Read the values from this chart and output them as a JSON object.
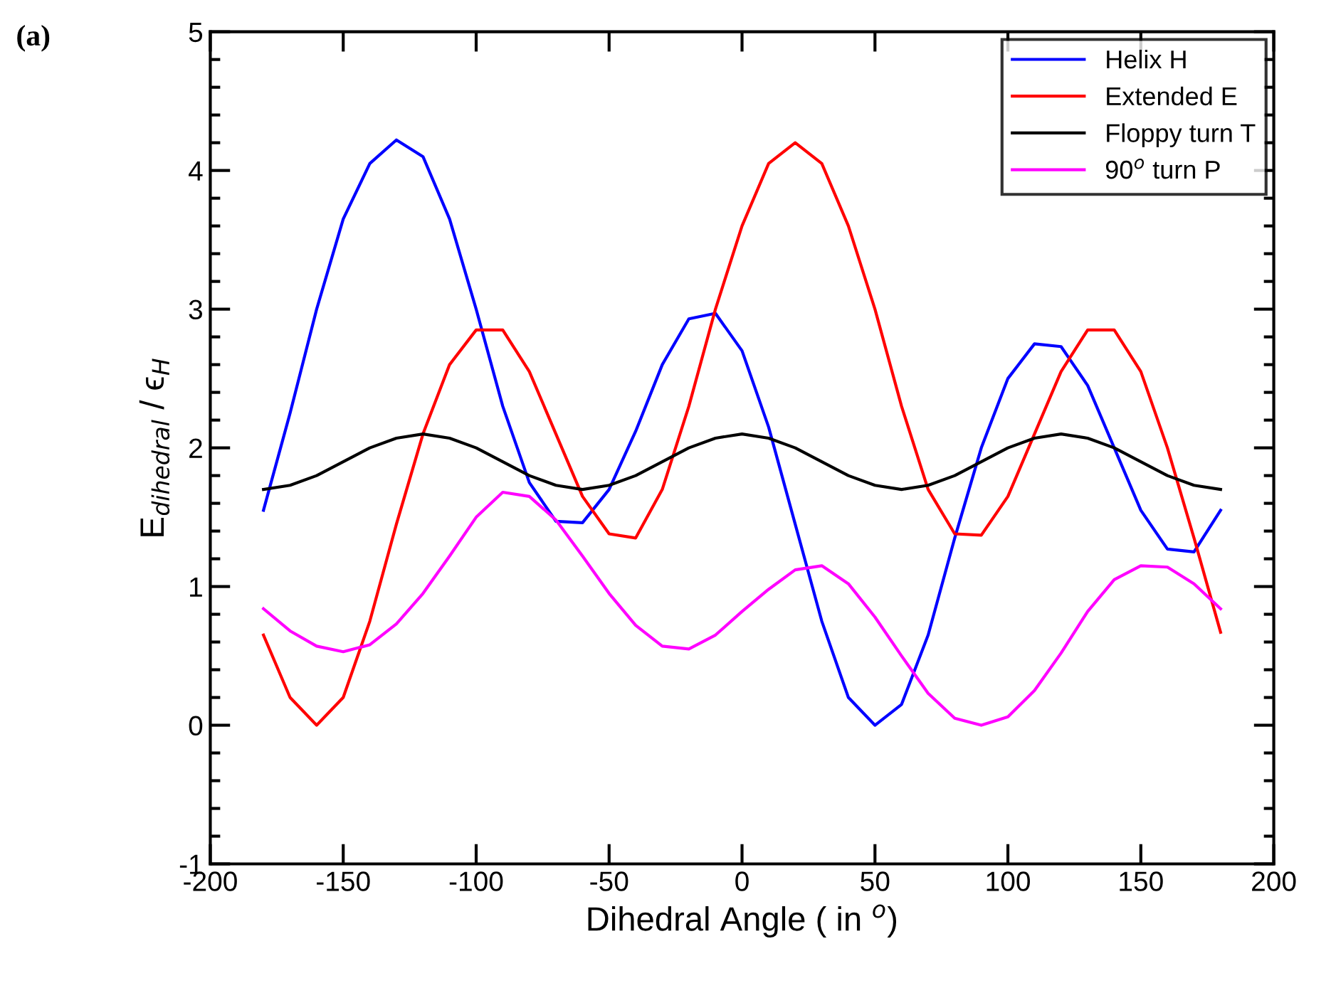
{
  "chart_data": {
    "type": "line",
    "xlabel": "Dihedral Angle ( in $^{o}$)",
    "ylabel": "E$_{dihedral}$ / ϵ$_{H}$",
    "annotations": [
      "(a)"
    ],
    "x": [
      -180,
      -170,
      -160,
      -150,
      -140,
      -130,
      -120,
      -110,
      -100,
      -90,
      -80,
      -70,
      -60,
      -50,
      -40,
      -30,
      -20,
      -10,
      0,
      10,
      20,
      30,
      40,
      50,
      60,
      70,
      80,
      90,
      100,
      110,
      120,
      130,
      140,
      150,
      160,
      170,
      180
    ],
    "series": [
      {
        "name": "Helix H",
        "color": "#0000ff",
        "values": [
          1.55,
          2.25,
          3.0,
          3.65,
          4.05,
          4.22,
          4.1,
          3.65,
          3.0,
          2.3,
          1.75,
          1.47,
          1.46,
          1.7,
          2.12,
          2.6,
          2.93,
          2.97,
          2.7,
          2.15,
          1.45,
          0.75,
          0.2,
          0.0,
          0.15,
          0.65,
          1.35,
          2.0,
          2.5,
          2.75,
          2.73,
          2.45,
          2.0,
          1.55,
          1.27,
          1.25,
          1.55
        ]
      },
      {
        "name": "Extended E",
        "color": "#ff0000",
        "values": [
          0.65,
          0.2,
          0.0,
          0.2,
          0.75,
          1.45,
          2.1,
          2.6,
          2.85,
          2.85,
          2.55,
          2.1,
          1.65,
          1.38,
          1.35,
          1.7,
          2.3,
          3.0,
          3.6,
          4.05,
          4.2,
          4.05,
          3.6,
          3.0,
          2.3,
          1.7,
          1.38,
          1.37,
          1.65,
          2.1,
          2.55,
          2.85,
          2.85,
          2.55,
          2.0,
          1.35,
          0.67
        ]
      },
      {
        "name": "Floppy turn T",
        "color": "#000000",
        "values": [
          1.7,
          1.73,
          1.8,
          1.9,
          2.0,
          2.07,
          2.1,
          2.07,
          2.0,
          1.9,
          1.8,
          1.73,
          1.7,
          1.73,
          1.8,
          1.9,
          2.0,
          2.07,
          2.1,
          2.07,
          2.0,
          1.9,
          1.8,
          1.73,
          1.7,
          1.73,
          1.8,
          1.9,
          2.0,
          2.07,
          2.1,
          2.07,
          2.0,
          1.9,
          1.8,
          1.73,
          1.7
        ]
      },
      {
        "name": "90$^{o}$ turn P",
        "color": "#ff00ff",
        "values": [
          0.84,
          0.68,
          0.57,
          0.53,
          0.58,
          0.73,
          0.95,
          1.22,
          1.5,
          1.68,
          1.65,
          1.48,
          1.22,
          0.95,
          0.72,
          0.57,
          0.55,
          0.65,
          0.82,
          0.98,
          1.12,
          1.15,
          1.02,
          0.78,
          0.5,
          0.23,
          0.05,
          0.0,
          0.06,
          0.25,
          0.52,
          0.82,
          1.05,
          1.15,
          1.14,
          1.02,
          0.84
        ]
      }
    ],
    "xlim": [
      -200,
      200
    ],
    "xticks": [
      -200,
      -150,
      -100,
      -50,
      0,
      50,
      100,
      150,
      200
    ],
    "ylim": [
      -1,
      5
    ],
    "yticks": [
      -1,
      0,
      1,
      2,
      3,
      4,
      5
    ],
    "grid": false,
    "legend": "top right",
    "marker": "none",
    "line_style": "solid"
  }
}
